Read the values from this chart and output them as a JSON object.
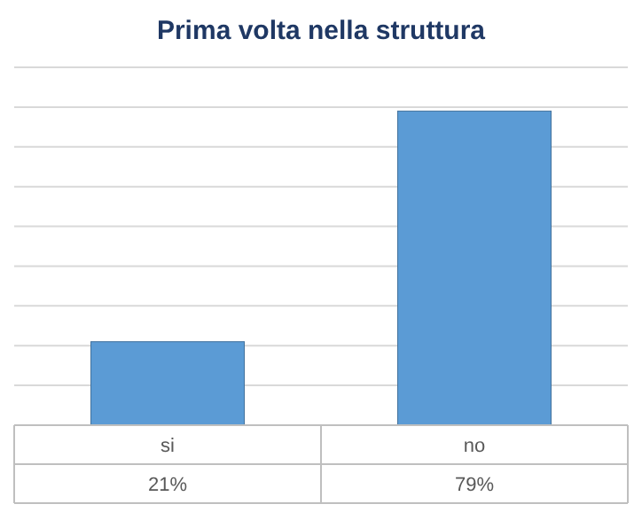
{
  "chart_data": {
    "type": "bar",
    "title": "Prima volta nella struttura",
    "categories": [
      "si",
      "no"
    ],
    "values": [
      21,
      79
    ],
    "value_labels": [
      "21%",
      "79%"
    ],
    "color": "#5b9bd5",
    "ylim": [
      0,
      90
    ],
    "yticks": [
      {
        "value": 0,
        "label": null
      },
      {
        "value": 10,
        "label": null
      },
      {
        "value": 20,
        "label": null
      },
      {
        "value": 30,
        "label": null
      },
      {
        "value": 40,
        "label": null
      },
      {
        "value": 50,
        "label": null
      },
      {
        "value": 60,
        "label": null
      },
      {
        "value": 70,
        "label": null
      },
      {
        "value": 80,
        "label": null
      },
      {
        "value": 90,
        "label": null
      }
    ],
    "grid": true,
    "tick_labels": "x"
  }
}
